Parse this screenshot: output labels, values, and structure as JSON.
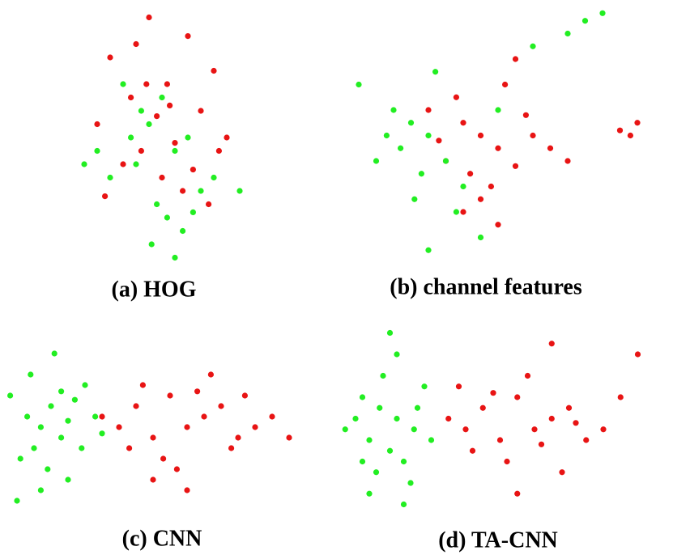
{
  "chart_data": [
    {
      "type": "scatter",
      "title": "(a) HOG",
      "xlim": [
        0,
        100
      ],
      "ylim": [
        0,
        100
      ],
      "series": [
        {
          "color": "#e81414",
          "x": [
            45,
            60,
            30,
            70,
            52,
            38,
            65,
            48,
            25,
            75,
            55,
            42,
            35,
            62,
            50,
            58,
            28,
            68,
            44,
            53,
            40,
            72
          ],
          "values": [
            95,
            88,
            80,
            75,
            70,
            65,
            60,
            58,
            55,
            50,
            48,
            45,
            40,
            38,
            35,
            30,
            28,
            25,
            70,
            62,
            85,
            45
          ]
        },
        {
          "color": "#22ee22",
          "x": [
            35,
            50,
            45,
            60,
            55,
            40,
            30,
            65,
            48,
            52,
            58,
            42,
            70,
            25,
            38,
            62,
            46,
            55,
            80,
            20
          ],
          "values": [
            70,
            65,
            55,
            50,
            45,
            40,
            35,
            30,
            25,
            20,
            15,
            60,
            35,
            45,
            50,
            22,
            10,
            5,
            30,
            40
          ]
        }
      ]
    },
    {
      "type": "scatter",
      "title": "(b) channel features",
      "xlim": [
        0,
        100
      ],
      "ylim": [
        0,
        100
      ],
      "series": [
        {
          "color": "#e81414",
          "x": [
            30,
            40,
            45,
            50,
            35,
            55,
            42,
            48,
            38,
            52,
            60,
            45,
            33,
            58,
            65,
            40,
            50,
            85,
            88,
            90,
            55,
            70
          ],
          "values": [
            60,
            55,
            50,
            45,
            40,
            38,
            35,
            30,
            65,
            70,
            50,
            25,
            48,
            58,
            45,
            20,
            15,
            52,
            50,
            55,
            80,
            40
          ]
        },
        {
          "color": "#22ee22",
          "x": [
            10,
            20,
            25,
            30,
            22,
            35,
            28,
            18,
            40,
            32,
            60,
            70,
            75,
            80,
            15,
            26,
            38,
            45,
            50,
            30
          ],
          "values": [
            70,
            60,
            55,
            50,
            45,
            40,
            35,
            50,
            30,
            75,
            85,
            90,
            95,
            98,
            40,
            25,
            20,
            10,
            60,
            5
          ]
        }
      ]
    },
    {
      "type": "scatter",
      "title": "(c) CNN",
      "xlim": [
        0,
        100
      ],
      "ylim": [
        0,
        100
      ],
      "series": [
        {
          "color": "#22ee22",
          "x": [
            3,
            8,
            12,
            15,
            18,
            10,
            20,
            22,
            6,
            14,
            25,
            28,
            9,
            16,
            12,
            20,
            5,
            30,
            24,
            18
          ],
          "values": [
            60,
            50,
            45,
            55,
            40,
            35,
            48,
            58,
            30,
            25,
            65,
            50,
            70,
            80,
            15,
            20,
            10,
            42,
            35,
            62
          ]
        },
        {
          "color": "#e81414",
          "x": [
            30,
            35,
            40,
            45,
            50,
            55,
            60,
            65,
            70,
            75,
            80,
            38,
            48,
            58,
            68,
            42,
            52,
            62,
            72,
            85,
            45,
            55
          ],
          "values": [
            50,
            45,
            55,
            40,
            60,
            45,
            50,
            55,
            40,
            45,
            50,
            35,
            30,
            62,
            35,
            65,
            25,
            70,
            60,
            40,
            20,
            15
          ]
        }
      ]
    },
    {
      "type": "scatter",
      "title": "(d) TA-CNN",
      "xlim": [
        0,
        100
      ],
      "ylim": [
        0,
        100
      ],
      "series": [
        {
          "color": "#22ee22",
          "x": [
            10,
            15,
            20,
            25,
            12,
            18,
            22,
            8,
            28,
            16,
            14,
            24,
            5,
            20,
            18,
            12,
            26,
            30,
            10,
            22
          ],
          "values": [
            60,
            55,
            50,
            45,
            40,
            35,
            30,
            50,
            65,
            70,
            25,
            20,
            45,
            80,
            90,
            15,
            55,
            40,
            30,
            10
          ]
        },
        {
          "color": "#e81414",
          "x": [
            35,
            40,
            45,
            50,
            55,
            60,
            65,
            70,
            75,
            80,
            42,
            52,
            62,
            72,
            48,
            58,
            68,
            85,
            90,
            38,
            55,
            65
          ],
          "values": [
            50,
            45,
            55,
            40,
            60,
            45,
            50,
            55,
            40,
            45,
            35,
            30,
            38,
            48,
            62,
            70,
            25,
            60,
            80,
            65,
            15,
            85
          ]
        }
      ]
    }
  ]
}
